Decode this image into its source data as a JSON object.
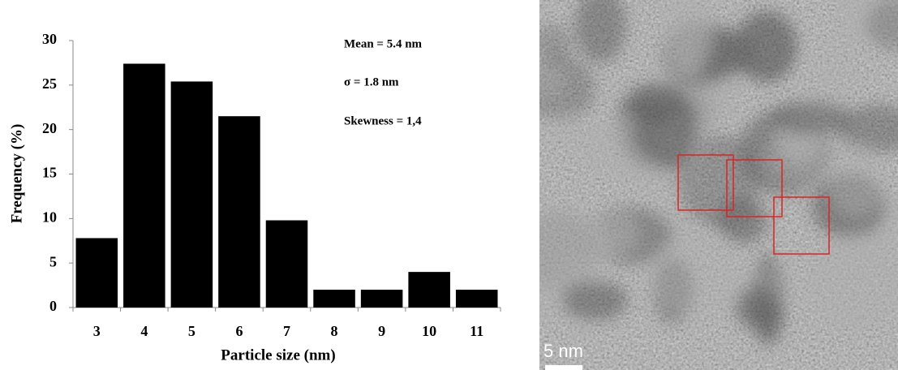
{
  "chart_data": {
    "type": "bar",
    "x_label": "Particle size (nm)",
    "y_label": "Frequency (%)",
    "categories": [
      "3",
      "4",
      "5",
      "6",
      "7",
      "8",
      "9",
      "10",
      "11"
    ],
    "values": [
      7.8,
      27.4,
      25.4,
      21.5,
      9.8,
      2,
      2,
      4,
      2
    ],
    "color": "#000000",
    "ylim": [
      0,
      30
    ],
    "yticks": [
      0,
      5,
      10,
      15,
      20,
      25,
      30
    ],
    "annotations": [
      "Mean = 5.4 nm",
      "σ = 1.8 nm",
      "Skewness =  1,4"
    ]
  },
  "image": {
    "scale_label": "5 nm"
  }
}
